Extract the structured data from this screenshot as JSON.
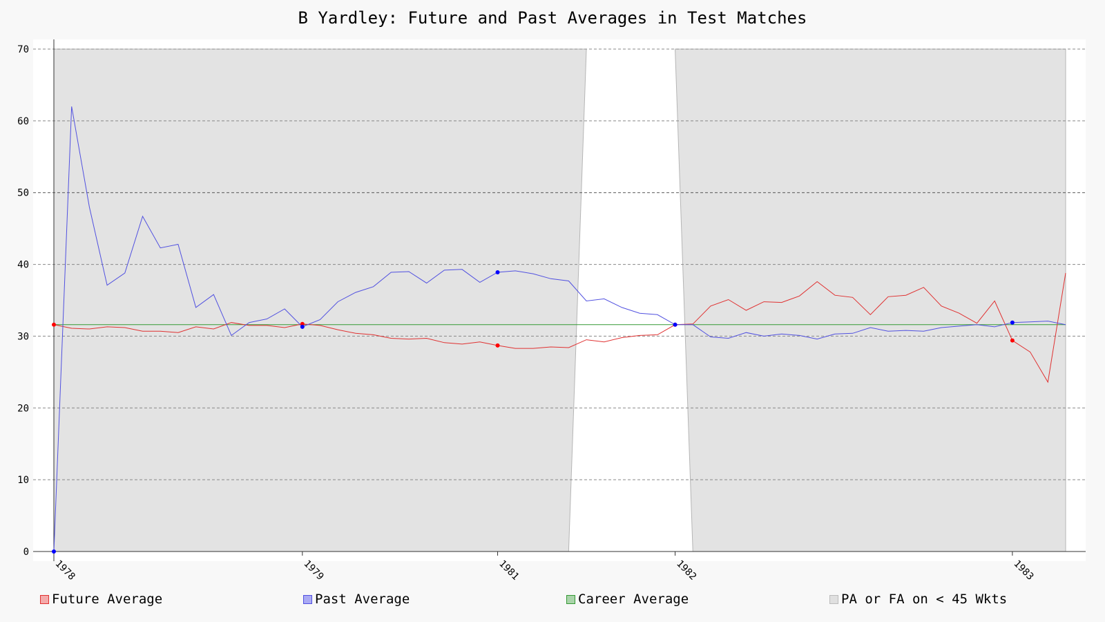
{
  "chart_data": {
    "type": "line",
    "title": "B Yardley: Future and Past Averages in Test Matches",
    "xlabel": "",
    "ylabel": "",
    "ylim": [
      0,
      70
    ],
    "y_ticks": [
      0,
      10,
      20,
      30,
      40,
      50,
      60,
      70
    ],
    "x_index_range": [
      0,
      57
    ],
    "x_ticks": [
      {
        "label": "1978",
        "index": 0
      },
      {
        "label": "1979",
        "index": 14
      },
      {
        "label": "1981",
        "index": 25
      },
      {
        "label": "1982",
        "index": 35
      },
      {
        "label": "1983",
        "index": 54
      }
    ],
    "grid": true,
    "legend_position": "bottom",
    "career_average": 31.6,
    "series": [
      {
        "name": "Future Average",
        "color": "#e03030",
        "marker_color": "#ff0000",
        "values": [
          31.6,
          31.1,
          31.0,
          31.3,
          31.2,
          30.7,
          30.7,
          30.5,
          31.3,
          31.0,
          31.9,
          31.5,
          31.5,
          31.2,
          31.7,
          31.5,
          30.9,
          30.4,
          30.2,
          29.7,
          29.6,
          29.7,
          29.1,
          28.9,
          29.2,
          28.7,
          28.3,
          28.3,
          28.5,
          28.4,
          29.5,
          29.2,
          29.8,
          30.1,
          30.2,
          31.6,
          31.7,
          34.2,
          35.1,
          33.6,
          34.8,
          34.7,
          35.6,
          37.6,
          35.7,
          35.4,
          33.0,
          35.5,
          35.7,
          36.8,
          34.2,
          33.2,
          31.8,
          34.9,
          29.4,
          27.8,
          23.6,
          38.8
        ],
        "markers": [
          0,
          14,
          25,
          35,
          54
        ]
      },
      {
        "name": "Past Average",
        "color": "#5050e0",
        "marker_color": "#0000ff",
        "values": [
          0.0,
          62.0,
          48.0,
          37.1,
          38.8,
          46.7,
          42.3,
          42.8,
          34.0,
          35.8,
          30.1,
          31.9,
          32.4,
          33.8,
          31.3,
          32.3,
          34.8,
          36.1,
          36.9,
          38.9,
          39.0,
          37.4,
          39.2,
          39.3,
          37.5,
          38.9,
          39.1,
          38.7,
          38.0,
          37.7,
          34.9,
          35.2,
          34.0,
          33.2,
          33.0,
          31.6,
          31.6,
          29.9,
          29.7,
          30.5,
          30.0,
          30.3,
          30.1,
          29.6,
          30.3,
          30.4,
          31.2,
          30.7,
          30.8,
          30.7,
          31.2,
          31.4,
          31.6,
          31.3,
          31.9,
          32.0,
          32.1,
          31.6
        ],
        "markers": [
          0,
          14,
          25,
          35,
          54
        ]
      },
      {
        "name": "Career Average",
        "color": "#339933",
        "values": [
          31.6,
          31.6
        ]
      }
    ],
    "shaded_regions": [
      {
        "name": "PA or FA on < 45 Wkts",
        "from_index": 0,
        "to_index": 29,
        "color": "#e3e3e3"
      },
      {
        "name": "PA or FA on < 45 Wkts",
        "from_index": 36,
        "to_index": 57,
        "color": "#e3e3e3"
      }
    ],
    "legend": [
      {
        "label": "Future Average",
        "fill": "#f4aaaa",
        "border": "#e03030"
      },
      {
        "label": "Past Average",
        "fill": "#aaaaf4",
        "border": "#5050e0"
      },
      {
        "label": "Career Average",
        "fill": "#aad4aa",
        "border": "#339933"
      },
      {
        "label": "PA or FA on < 45 Wkts",
        "fill": "#e0e0e0",
        "border": "#bbbbbb"
      }
    ]
  }
}
